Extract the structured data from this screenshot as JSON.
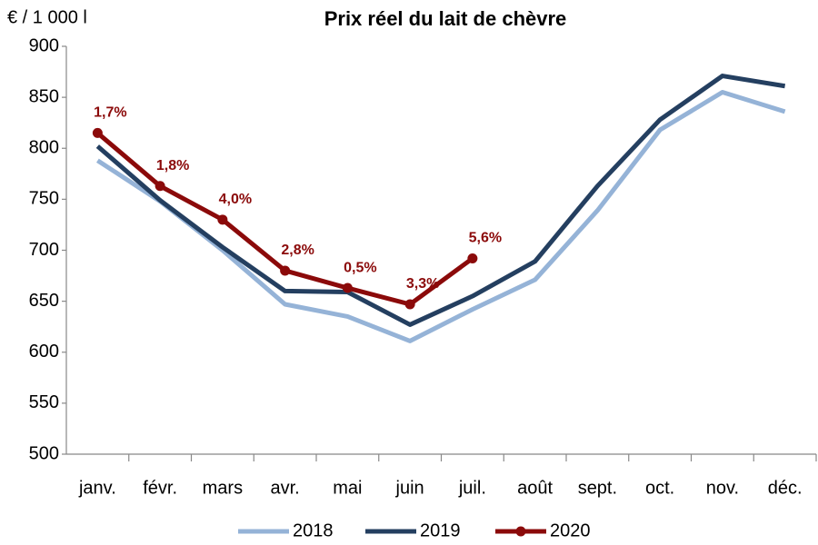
{
  "chart_data": {
    "type": "line",
    "title": "Prix réel du lait de chèvre",
    "y_label": "€ / 1 000 l",
    "categories": [
      "janv.",
      "févr.",
      "mars",
      "avr.",
      "mai",
      "juin",
      "juil.",
      "août",
      "sept.",
      "oct.",
      "nov.",
      "déc."
    ],
    "series": [
      {
        "name": "2018",
        "color": "#95b3d7",
        "markers": false,
        "values": [
          788,
          748,
          700,
          647,
          635,
          611,
          642,
          671,
          739,
          818,
          855,
          836
        ]
      },
      {
        "name": "2019",
        "color": "#243f60",
        "markers": false,
        "values": [
          802,
          749,
          703,
          660,
          659,
          627,
          655,
          689,
          763,
          828,
          871,
          861
        ]
      },
      {
        "name": "2020",
        "color": "#8b0a0a",
        "markers": true,
        "values": [
          815,
          763,
          730,
          680,
          663,
          647,
          692,
          null,
          null,
          null,
          null,
          null
        ],
        "point_labels": [
          "1,7%",
          "1,8%",
          "4,0%",
          "2,8%",
          "0,5%",
          "3,3%",
          "5,6%",
          null,
          null,
          null,
          null,
          null
        ]
      }
    ],
    "ylim": [
      500,
      900
    ],
    "yticks": [
      500,
      550,
      600,
      650,
      700,
      750,
      800,
      850,
      900
    ],
    "grid": false,
    "legend": "bottom"
  }
}
